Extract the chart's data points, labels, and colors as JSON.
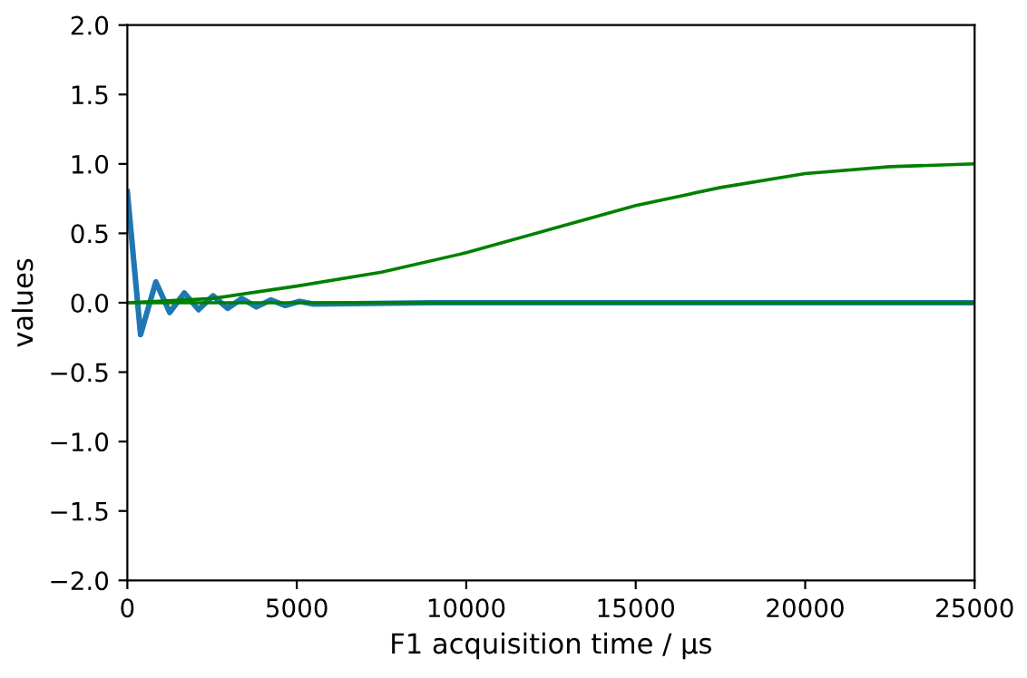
{
  "chart_data": {
    "type": "line",
    "xlabel": "F1 acquisition time / µs",
    "ylabel": "values",
    "xlim": [
      0,
      25000
    ],
    "ylim": [
      -2.0,
      2.0
    ],
    "xticks": [
      0,
      5000,
      10000,
      15000,
      20000,
      25000
    ],
    "yticks": [
      {
        "value": -2.0,
        "label": "−2.0"
      },
      {
        "value": -1.5,
        "label": "−1.5"
      },
      {
        "value": -1.0,
        "label": "−1.0"
      },
      {
        "value": -0.5,
        "label": "−0.5"
      },
      {
        "value": 0.0,
        "label": "0.0"
      },
      {
        "value": 0.5,
        "label": "0.5"
      },
      {
        "value": 1.0,
        "label": "1.0"
      },
      {
        "value": 1.5,
        "label": "1.5"
      },
      {
        "value": 2.0,
        "label": "2.0"
      }
    ],
    "grid": false,
    "legend": false,
    "series": [
      {
        "color": "#1f77b4",
        "x": [
          0,
          390,
          840,
          1250,
          1680,
          2100,
          2530,
          2960,
          3380,
          3810,
          4230,
          4660,
          5080,
          5500,
          9000,
          25000
        ],
        "values": [
          0.8,
          -0.23,
          0.15,
          -0.07,
          0.07,
          -0.05,
          0.05,
          -0.04,
          0.03,
          -0.03,
          0.02,
          -0.02,
          0.01,
          -0.01,
          0.0,
          0.0
        ]
      },
      {
        "color": "#008000",
        "x": [
          0,
          2500,
          5000,
          7500,
          10000,
          12500,
          15000,
          17500,
          20000,
          22500,
          25000
        ],
        "values": [
          0.0,
          0.03,
          0.12,
          0.22,
          0.36,
          0.53,
          0.7,
          0.83,
          0.93,
          0.98,
          1.0
        ]
      },
      {
        "color": "#008000",
        "x": [
          0,
          25000
        ],
        "values": [
          0.0,
          0.0
        ]
      }
    ]
  }
}
